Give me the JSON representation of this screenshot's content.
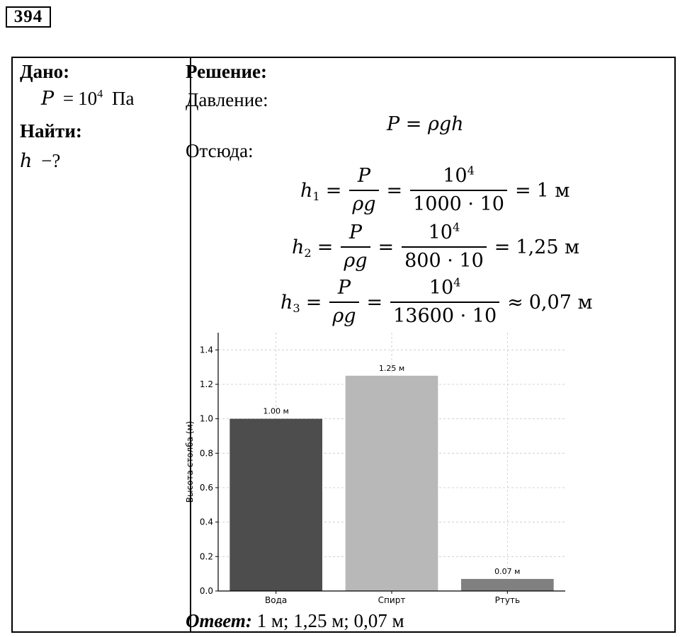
{
  "problem_number": "394",
  "given": {
    "heading": "Дано:",
    "pressure": {
      "symbol": "P",
      "eq": "=",
      "base": "10",
      "exp": "4",
      "unit": "Па"
    },
    "find_heading": "Найти:",
    "find": {
      "symbol": "h",
      "rest": "−?"
    }
  },
  "solution": {
    "heading": "Решение:",
    "pressure_label": "Давление:",
    "formula": "P = ρgh",
    "hence_label": "Отсюда:",
    "equations": [
      {
        "lhs": "h",
        "sub": "1",
        "num1": "P",
        "den1": "ρg",
        "num2_base": "10",
        "num2_exp": "4",
        "den2": "1000 · 10",
        "rel": "=",
        "result": "1 м"
      },
      {
        "lhs": "h",
        "sub": "2",
        "num1": "P",
        "den1": "ρg",
        "num2_base": "10",
        "num2_exp": "4",
        "den2": "800 · 10",
        "rel": "=",
        "result": "1,25 м"
      },
      {
        "lhs": "h",
        "sub": "3",
        "num1": "P",
        "den1": "ρg",
        "num2_base": "10",
        "num2_exp": "4",
        "den2": "13600 · 10",
        "rel": "≈",
        "result": "0,07 м"
      }
    ],
    "answer_label": "Ответ:",
    "answer_text": "1 м; 1,25 м; 0,07 м"
  },
  "chart_data": {
    "type": "bar",
    "categories": [
      "Вода",
      "Спирт",
      "Ртуть"
    ],
    "values": [
      1.0,
      1.25,
      0.07
    ],
    "value_labels": [
      "1.00 м",
      "1.25 м",
      "0.07 м"
    ],
    "colors": [
      "#4d4d4d",
      "#b8b8b8",
      "#808080"
    ],
    "ylabel": "Высота столба (м)",
    "ylim": [
      0,
      1.5
    ],
    "yticks": [
      0.0,
      0.2,
      0.4,
      0.6,
      0.8,
      1.0,
      1.2,
      1.4
    ],
    "ytick_labels": [
      "0.0",
      "0.2",
      "0.4",
      "0.6",
      "0.8",
      "1.0",
      "1.2",
      "1.4"
    ],
    "grid": true
  }
}
